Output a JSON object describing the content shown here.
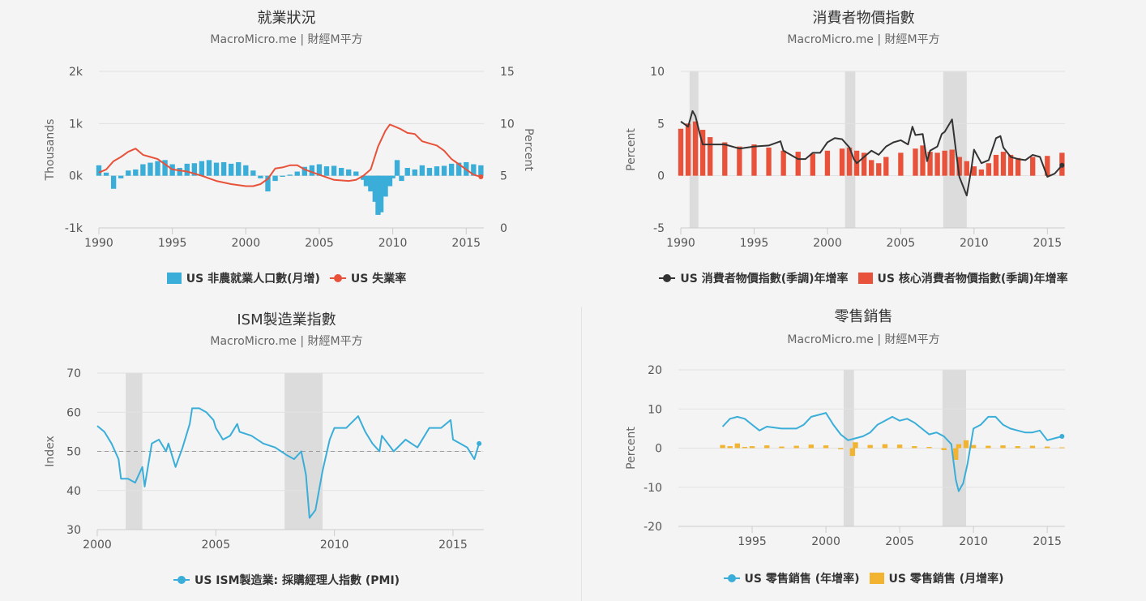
{
  "charts": [
    {
      "id": "employment",
      "title": "就業狀況",
      "subtitle": "MacroMicro.me | 財經M平方",
      "xticks": [
        "1990",
        "1995",
        "2000",
        "2005",
        "2010",
        "2015"
      ],
      "yticks_left": [
        "2k",
        "1k",
        "0k",
        "-1k"
      ],
      "yticks_right": [
        "15",
        "10",
        "5",
        "0"
      ],
      "ylabel_left": "Thousands",
      "ylabel_right": "Percent",
      "legend": [
        {
          "label": "US 非農就業人口數(月增)",
          "color": "#3aaed8",
          "symbol": "rect"
        },
        {
          "label": "US 失業率",
          "color": "#e8523a",
          "symbol": "line"
        }
      ]
    },
    {
      "id": "cpi",
      "title": "消費者物價指數",
      "subtitle": "MacroMicro.me | 財經M平方",
      "xticks": [
        "1990",
        "1995",
        "2000",
        "2005",
        "2010",
        "2015"
      ],
      "yticks_left": [
        "10",
        "5",
        "0",
        "-5"
      ],
      "ylabel_left": "Percent",
      "legend": [
        {
          "label": "US 消費者物價指數(季調)年增率",
          "color": "#333333",
          "symbol": "line"
        },
        {
          "label": "US 核心消費者物價指數(季調)年增率",
          "color": "#e8523a",
          "symbol": "rect"
        }
      ]
    },
    {
      "id": "ism",
      "title": "ISM製造業指數",
      "subtitle": "MacroMicro.me | 財經M平方",
      "xticks": [
        "2000",
        "2005",
        "2010",
        "2015"
      ],
      "yticks_left": [
        "70",
        "60",
        "50",
        "40",
        "30"
      ],
      "ylabel_left": "Index",
      "legend": [
        {
          "label": "US ISM製造業: 採購經理人指數 (PMI)",
          "color": "#3aaed8",
          "symbol": "line"
        }
      ]
    },
    {
      "id": "retail",
      "title": "零售銷售",
      "subtitle": "MacroMicro.me | 財經M平方",
      "xticks": [
        "1995",
        "2000",
        "2005",
        "2010",
        "2015"
      ],
      "yticks_left": [
        "20",
        "10",
        "0",
        "-10",
        "-20"
      ],
      "ylabel_left": "Percent",
      "legend": [
        {
          "label": "US 零售銷售 (年增率)",
          "color": "#3aaed8",
          "symbol": "line"
        },
        {
          "label": "US 零售銷售 (月增率)",
          "color": "#f2b330",
          "symbol": "rect"
        }
      ]
    }
  ],
  "chart_data": [
    {
      "type": "bar+line",
      "title": "就業狀況",
      "xlabel": "",
      "ylabel": "Thousands",
      "y2label": "Percent",
      "ylim": [
        -1000,
        2000
      ],
      "y2lim": [
        0,
        15
      ],
      "xlim": [
        1990,
        2016.2
      ],
      "series": [
        {
          "name": "US 非農就業人口數(月增)",
          "type": "bar",
          "axis": "left",
          "color": "#3aaed8",
          "x": [
            1990,
            1990.5,
            1991,
            1991.5,
            1992,
            1992.5,
            1993,
            1993.5,
            1994,
            1994.5,
            1995,
            1995.5,
            1996,
            1996.5,
            1997,
            1997.5,
            1998,
            1998.5,
            1999,
            1999.5,
            2000,
            2000.5,
            2001,
            2001.5,
            2002,
            2002.5,
            2003,
            2003.5,
            2004,
            2004.5,
            2005,
            2005.5,
            2006,
            2006.5,
            2007,
            2007.5,
            2008,
            2008.2,
            2008.5,
            2008.8,
            2009,
            2009.2,
            2009.5,
            2009.8,
            2010,
            2010.3,
            2010.6,
            2011,
            2011.5,
            2012,
            2012.5,
            2013,
            2013.5,
            2014,
            2014.5,
            2015,
            2015.5,
            2016
          ],
          "values": [
            200,
            60,
            -250,
            -50,
            100,
            120,
            220,
            250,
            280,
            300,
            220,
            150,
            230,
            240,
            280,
            300,
            250,
            260,
            230,
            260,
            200,
            100,
            -50,
            -300,
            -100,
            -20,
            20,
            80,
            170,
            200,
            220,
            180,
            190,
            150,
            120,
            80,
            -80,
            -200,
            -300,
            -500,
            -750,
            -700,
            -400,
            -200,
            -50,
            300,
            -100,
            150,
            120,
            200,
            150,
            180,
            190,
            230,
            250,
            260,
            220,
            200
          ]
        },
        {
          "name": "US 失業率",
          "type": "line",
          "axis": "right",
          "color": "#e8523a",
          "x": [
            1990,
            1990.5,
            1991,
            1991.5,
            1992,
            1992.5,
            1993,
            1993.5,
            1994,
            1994.5,
            1995,
            1996,
            1997,
            1998,
            1999,
            2000,
            2000.5,
            2001,
            2001.5,
            2002,
            2002.5,
            2003,
            2003.5,
            2004,
            2005,
            2006,
            2007,
            2007.5,
            2008,
            2008.5,
            2009,
            2009.5,
            2009.8,
            2010,
            2010.5,
            2011,
            2011.5,
            2012,
            2012.5,
            2013,
            2013.5,
            2014,
            2014.5,
            2015,
            2015.5,
            2016
          ],
          "values": [
            5.3,
            5.6,
            6.4,
            6.8,
            7.3,
            7.6,
            7.0,
            6.8,
            6.6,
            6.1,
            5.6,
            5.4,
            5.0,
            4.5,
            4.2,
            4.0,
            4.0,
            4.2,
            4.7,
            5.7,
            5.8,
            6.0,
            6.0,
            5.6,
            5.1,
            4.6,
            4.5,
            4.6,
            5.0,
            5.6,
            7.8,
            9.3,
            9.9,
            9.8,
            9.5,
            9.1,
            9.0,
            8.3,
            8.1,
            7.9,
            7.4,
            6.6,
            6.1,
            5.6,
            5.1,
            4.9
          ]
        }
      ],
      "recessions": []
    },
    {
      "type": "bar+line",
      "title": "消費者物價指數",
      "xlabel": "",
      "ylabel": "Percent",
      "ylim": [
        -5,
        10
      ],
      "xlim": [
        1990,
        2016.2
      ],
      "series": [
        {
          "name": "US 消費者物價指數(季調)年增率",
          "type": "line",
          "color": "#333333",
          "x": [
            1990,
            1990.5,
            1990.8,
            1991,
            1991.3,
            1991.5,
            1992,
            1993,
            1994,
            1995,
            1996,
            1996.8,
            1997,
            1998,
            1998.5,
            1999,
            1999.5,
            2000,
            2000.5,
            2001,
            2001.5,
            2001.8,
            2002,
            2002.5,
            2003,
            2003.5,
            2004,
            2004.5,
            2005,
            2005.5,
            2005.8,
            2006,
            2006.5,
            2006.8,
            2007,
            2007.5,
            2007.8,
            2008,
            2008.5,
            2008.8,
            2009,
            2009.5,
            2009.8,
            2010,
            2010.5,
            2011,
            2011.5,
            2011.8,
            2012,
            2012.5,
            2013,
            2013.5,
            2014,
            2014.5,
            2015,
            2015.5,
            2016
          ],
          "values": [
            5.2,
            4.7,
            6.2,
            5.7,
            4.0,
            3.0,
            3.0,
            3.0,
            2.6,
            2.8,
            2.9,
            3.3,
            2.4,
            1.6,
            1.6,
            2.2,
            2.2,
            3.2,
            3.6,
            3.5,
            2.7,
            1.6,
            1.2,
            1.8,
            2.4,
            2.0,
            2.8,
            3.2,
            3.4,
            3.0,
            4.7,
            3.9,
            4.0,
            1.4,
            2.4,
            2.8,
            4.0,
            4.2,
            5.4,
            2.0,
            -0.1,
            -1.9,
            0.5,
            2.5,
            1.2,
            1.5,
            3.6,
            3.8,
            2.7,
            1.8,
            1.6,
            1.5,
            2.0,
            1.8,
            -0.1,
            0.2,
            1.0
          ]
        },
        {
          "name": "US 核心消費者物價指數(季調)年增率",
          "type": "bar",
          "color": "#e8523a",
          "x": [
            1990,
            1990.5,
            1991,
            1991.5,
            1992,
            1993,
            1994,
            1995,
            1996,
            1997,
            1998,
            1999,
            2000,
            2001,
            2001.5,
            2002,
            2002.5,
            2003,
            2003.5,
            2004,
            2005,
            2006,
            2006.5,
            2007,
            2007.5,
            2008,
            2008.5,
            2009,
            2009.5,
            2010,
            2010.5,
            2011,
            2011.5,
            2012,
            2012.5,
            2013,
            2014,
            2015,
            2016
          ],
          "values": [
            4.5,
            5.0,
            5.2,
            4.4,
            3.7,
            3.2,
            2.8,
            3.0,
            2.7,
            2.4,
            2.3,
            2.1,
            2.4,
            2.6,
            2.7,
            2.4,
            2.2,
            1.5,
            1.2,
            1.8,
            2.2,
            2.6,
            2.9,
            2.3,
            2.2,
            2.4,
            2.5,
            1.8,
            1.4,
            0.9,
            0.6,
            1.2,
            2.0,
            2.3,
            2.0,
            1.7,
            1.8,
            1.9,
            2.2
          ]
        }
      ],
      "recessions": [
        [
          1990.6,
          1991.2
        ],
        [
          2001.2,
          2001.9
        ],
        [
          2007.9,
          2009.5
        ]
      ]
    },
    {
      "type": "line",
      "title": "ISM製造業指數",
      "xlabel": "",
      "ylabel": "Index",
      "ylim": [
        30,
        70
      ],
      "xlim": [
        2000,
        2016.3
      ],
      "reference_line": 50,
      "series": [
        {
          "name": "US ISM製造業: 採購經理人指數 (PMI)",
          "color": "#3aaed8",
          "x": [
            2000,
            2000.3,
            2000.6,
            2000.9,
            2001,
            2001.3,
            2001.6,
            2001.9,
            2002,
            2002.3,
            2002.6,
            2002.9,
            2003,
            2003.3,
            2003.6,
            2003.9,
            2004,
            2004.3,
            2004.6,
            2004.9,
            2005,
            2005.3,
            2005.6,
            2005.9,
            2006,
            2006.5,
            2007,
            2007.5,
            2008,
            2008.3,
            2008.6,
            2008.8,
            2008.95,
            2009.2,
            2009.5,
            2009.8,
            2010,
            2010.5,
            2011,
            2011.3,
            2011.6,
            2011.9,
            2012,
            2012.5,
            2013,
            2013.5,
            2014,
            2014.5,
            2014.9,
            2015,
            2015.3,
            2015.6,
            2015.9,
            2016.1
          ],
          "values": [
            56.5,
            55,
            52,
            48,
            43,
            43,
            42,
            46,
            41,
            52,
            53,
            50,
            52,
            46,
            51,
            57,
            61,
            61,
            60,
            58,
            56,
            53,
            54,
            57,
            55,
            54,
            52,
            51,
            49,
            48,
            50,
            44,
            33,
            35,
            45,
            53,
            56,
            56,
            59,
            55,
            52,
            50,
            54,
            50,
            53,
            51,
            56,
            56,
            58,
            53,
            52,
            51,
            48,
            52
          ]
        }
      ],
      "recessions": [
        [
          2001.2,
          2001.9
        ],
        [
          2007.9,
          2009.5
        ]
      ]
    },
    {
      "type": "bar+line",
      "title": "零售銷售",
      "xlabel": "",
      "ylabel": "Percent",
      "ylim": [
        -20,
        20
      ],
      "xlim": [
        1990,
        2016.2
      ],
      "series": [
        {
          "name": "US 零售銷售 (年增率)",
          "type": "line",
          "color": "#3aaed8",
          "x": [
            1993,
            1993.5,
            1994,
            1994.5,
            1995,
            1995.5,
            1996,
            1997,
            1998,
            1998.5,
            1999,
            1999.5,
            2000,
            2000.5,
            2001,
            2001.5,
            2002,
            2002.5,
            2003,
            2003.5,
            2004,
            2004.5,
            2005,
            2005.5,
            2006,
            2006.5,
            2007,
            2007.5,
            2008,
            2008.5,
            2008.8,
            2009,
            2009.3,
            2009.6,
            2010,
            2010.5,
            2011,
            2011.5,
            2012,
            2012.5,
            2013,
            2013.5,
            2014,
            2014.5,
            2015,
            2015.5,
            2016
          ],
          "values": [
            5.5,
            7.5,
            8.0,
            7.5,
            6.0,
            4.5,
            5.5,
            5.0,
            5.0,
            6.0,
            8.0,
            8.5,
            9.0,
            6.0,
            3.5,
            2.0,
            2.5,
            3.0,
            4.0,
            6.0,
            7.0,
            8.0,
            7.0,
            7.5,
            6.5,
            5.0,
            3.5,
            4.0,
            3.0,
            1.0,
            -8.0,
            -11.0,
            -9.0,
            -4.0,
            5.0,
            6.0,
            8.0,
            8.0,
            6.0,
            5.0,
            4.5,
            4.0,
            4.0,
            4.5,
            2.0,
            2.5,
            3.0
          ]
        },
        {
          "name": "US 零售銷售 (月增率)",
          "type": "bar",
          "color": "#f2b330",
          "x": [
            1993,
            1993.5,
            1994,
            1994.5,
            1995,
            1996,
            1997,
            1998,
            1999,
            2000,
            2001,
            2001.8,
            2002,
            2003,
            2004,
            2005,
            2006,
            2007,
            2008,
            2008.8,
            2009,
            2009.5,
            2010,
            2011,
            2012,
            2013,
            2014,
            2015,
            2016
          ],
          "values": [
            0.8,
            0.5,
            1.2,
            0.3,
            0.5,
            0.7,
            0.4,
            0.6,
            0.9,
            0.7,
            -0.3,
            -2.0,
            1.5,
            0.8,
            1.0,
            0.9,
            0.5,
            0.3,
            -0.5,
            -3.0,
            1.0,
            2.0,
            0.8,
            0.6,
            0.7,
            0.5,
            0.6,
            0.4,
            0.2
          ]
        }
      ],
      "recessions": [
        [
          2001.2,
          2001.9
        ],
        [
          2007.9,
          2009.5
        ]
      ]
    }
  ]
}
